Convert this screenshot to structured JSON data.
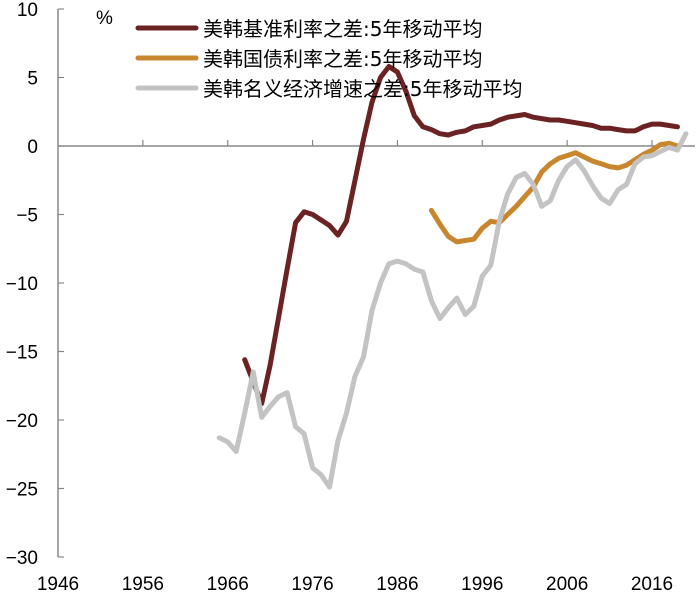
{
  "chart_data": {
    "type": "line",
    "title": "",
    "xlabel": "",
    "ylabel": "%",
    "xlim": [
      1946,
      2021
    ],
    "ylim": [
      -30,
      10
    ],
    "grid": false,
    "legend_position": "top-center",
    "x_ticks": [
      "1946",
      "1956",
      "1966",
      "1976",
      "1986",
      "1996",
      "2006",
      "2016"
    ],
    "y_ticks": [
      "10",
      "5",
      "0",
      "-5",
      "-10",
      "-15",
      "-20",
      "-25",
      "-30"
    ],
    "series": [
      {
        "name": "美韩基准利率之差:5年移动平均",
        "color": "#6b2222",
        "x": [
          1968,
          1969,
          1970,
          1971,
          1972,
          1973,
          1974,
          1975,
          1976,
          1977,
          1978,
          1979,
          1980,
          1981,
          1982,
          1983,
          1984,
          1985,
          1986,
          1987,
          1988,
          1989,
          1990,
          1991,
          1992,
          1993,
          1994,
          1995,
          1996,
          1997,
          1998,
          1999,
          2000,
          2001,
          2002,
          2003,
          2004,
          2005,
          2006,
          2007,
          2008,
          2009,
          2010,
          2011,
          2012,
          2013,
          2014,
          2015,
          2016,
          2017,
          2018,
          2019
        ],
        "values": [
          -15.6,
          -17.2,
          -18.8,
          -16.0,
          -12.5,
          -9.0,
          -5.6,
          -4.8,
          -5.0,
          -5.4,
          -5.8,
          -6.5,
          -5.5,
          -2.5,
          0.5,
          3.2,
          5.0,
          5.8,
          5.4,
          4.0,
          2.2,
          1.4,
          1.2,
          0.9,
          0.8,
          1.0,
          1.1,
          1.4,
          1.5,
          1.6,
          1.9,
          2.1,
          2.2,
          2.3,
          2.1,
          2.0,
          1.9,
          1.9,
          1.8,
          1.7,
          1.6,
          1.5,
          1.3,
          1.3,
          1.2,
          1.1,
          1.1,
          1.4,
          1.6,
          1.6,
          1.5,
          1.4
        ]
      },
      {
        "name": "美韩国债利率之差:5年移动平均",
        "color": "#c8862e",
        "x": [
          1990,
          1991,
          1992,
          1993,
          1994,
          1995,
          1996,
          1997,
          1998,
          1999,
          2000,
          2001,
          2002,
          2003,
          2004,
          2005,
          2006,
          2007,
          2008,
          2009,
          2010,
          2011,
          2012,
          2013,
          2014,
          2015,
          2016,
          2017,
          2018,
          2019
        ],
        "values": [
          -4.7,
          -5.7,
          -6.6,
          -7.0,
          -6.9,
          -6.8,
          -6.0,
          -5.5,
          -5.6,
          -5.0,
          -4.4,
          -3.7,
          -3.0,
          -1.9,
          -1.3,
          -0.9,
          -0.7,
          -0.5,
          -0.8,
          -1.1,
          -1.3,
          -1.5,
          -1.6,
          -1.4,
          -1.0,
          -0.6,
          -0.3,
          0.1,
          0.2,
          0.0
        ]
      },
      {
        "name": "美韩名义经济增速之差:5年移动平均",
        "color": "#c3c3c3",
        "x": [
          1965,
          1966,
          1967,
          1968,
          1969,
          1970,
          1971,
          1972,
          1973,
          1974,
          1975,
          1976,
          1977,
          1978,
          1979,
          1980,
          1981,
          1982,
          1983,
          1984,
          1985,
          1986,
          1987,
          1988,
          1989,
          1990,
          1991,
          1992,
          1993,
          1994,
          1995,
          1996,
          1997,
          1998,
          1999,
          2000,
          2001,
          2002,
          2003,
          2004,
          2005,
          2006,
          2007,
          2008,
          2009,
          2010,
          2011,
          2012,
          2013,
          2014,
          2015,
          2016,
          2017,
          2018,
          2019,
          2020
        ],
        "values": [
          -21.3,
          -21.6,
          -22.3,
          -19.5,
          -16.5,
          -19.8,
          -19.0,
          -18.3,
          -18.0,
          -20.5,
          -21.0,
          -23.5,
          -24.0,
          -24.9,
          -21.5,
          -19.5,
          -16.8,
          -15.4,
          -12.0,
          -10.0,
          -8.6,
          -8.4,
          -8.6,
          -9.0,
          -9.2,
          -11.3,
          -12.6,
          -11.8,
          -11.1,
          -12.3,
          -11.7,
          -9.5,
          -8.7,
          -5.5,
          -3.5,
          -2.3,
          -2.0,
          -2.8,
          -4.4,
          -4.0,
          -2.5,
          -1.5,
          -1.0,
          -1.8,
          -2.9,
          -3.8,
          -4.2,
          -3.2,
          -2.8,
          -1.3,
          -0.8,
          -0.7,
          -0.4,
          -0.1,
          -0.3,
          0.9
        ]
      }
    ]
  },
  "legend": {
    "items": [
      {
        "label": "美韩基准利率之差:5年移动平均",
        "color": "#6b2222"
      },
      {
        "label": "美韩国债利率之差:5年移动平均",
        "color": "#c8862e"
      },
      {
        "label": "美韩名义经济增速之差:5年移动平均",
        "color": "#c3c3c3"
      }
    ]
  },
  "axis": {
    "unit_label": "%",
    "color": "#888888"
  }
}
